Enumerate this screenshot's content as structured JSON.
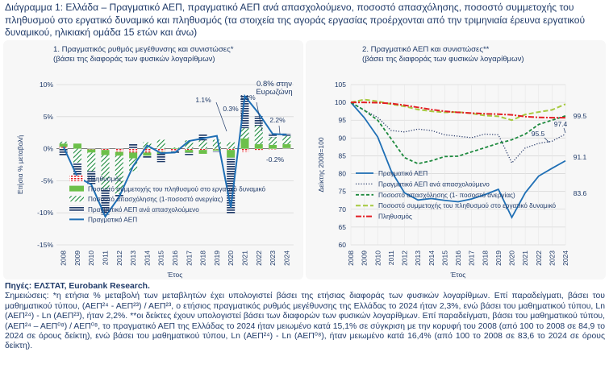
{
  "title": "Διάγραμμα 1: Ελλάδα – Πραγματικό ΑΕΠ, πραγματικό ΑΕΠ ανά απασχολούμενο, ποσοστό απασχόλησης, ποσοστό συμμετοχής του πληθυσμού στο εργατικό δυναμικό και πληθυσμός (τα στοιχεία της αγοράς εργασίας προέρχονται από την τριμηνιαία έρευνα εργατικού δυναμικού, ηλικιακή ομάδα 15 ετών και άνω)",
  "footer": {
    "sources": "Πηγές: ΕΛΣΤΑΤ, Eurobank Research.",
    "notes": "Σημειώσεις: *η ετήσια % μεταβολή των μεταβλητών έχει υπολογιστεί βάσει της ετήσιας διαφοράς των φυσικών λογαρίθμων. Επί παραδείγματι, βάσει του μαθηματικού τύπου, (ΑΕΠ²⁴ - ΑΕΠ²³) / ΑΕΠ²³, ο ετήσιος πραγματικός ρυθμός μεγέθυνσης της Ελλάδας το 2024 ήταν 2,3%, ενώ βάσει του μαθηματικού τύπου, Ln (ΑΕΠ²⁴) - Ln (ΑΕΠ²³), ήταν 2,2%. **οι δείκτες έχουν υπολογιστεί βάσει των διαφορών των φυσικών λογαρίθμων. Επί παραδείγματι, βάσει του μαθηματικού τύπου, (ΑΕΠ²⁴ – ΑΕΠ⁰⁸) / ΑΕΠ⁰⁸, το πραγματικό ΑΕΠ της Ελλάδας το 2024 ήταν μειωμένο κατά 15,1% σε σύγκριση με την κορυφή του 2008 (από 100 το 2008 σε 84,9 το 2024 σε όρους δείκτη), ενώ βάσει του μαθηματικού τύπου, Ln (ΑΕΠ²⁴) - Ln (ΑΕΠ⁰⁸), ήταν μειωμένο κατά 16,4% (από 100 το 2008 σε 83,6 το 2024 σε όρους δείκτη)."
  },
  "colors": {
    "navy": "#1f3a68",
    "gdp": "#1f6fb5",
    "participation": "#6cc04a",
    "employment": "#1e8a3e",
    "population": "#e31e24",
    "participation_light": "#a6c93f",
    "productivity_dots": "#2d3f6e",
    "panel_bg": "#f7f7f7"
  },
  "chart_data": [
    {
      "type": "bar",
      "stacked": true,
      "title": "1. Πραγματικός ρυθμός μεγέθυνσης και συνιστώσες*",
      "subtitle": "(βάσει της διαφοράς των φυσικών λογαρίθμων)",
      "ylabel": "Ετήσια % μεταβολή",
      "xlabel": "Έτος",
      "ylim": [
        -15,
        10
      ],
      "yticks": [
        -15,
        -10,
        -5,
        0,
        5,
        10
      ],
      "ytick_labels": [
        "-15%",
        "-10%",
        "-5%",
        "0%",
        "5%",
        "10%"
      ],
      "categories": [
        "2008",
        "2009",
        "2010",
        "2011",
        "2012",
        "2013",
        "2014",
        "2015",
        "2016",
        "2017",
        "2018",
        "2019",
        "2020",
        "2021",
        "2022",
        "2023",
        "2024"
      ],
      "grid": true,
      "legend_position": "lower-left",
      "series": [
        {
          "name": "Πληθυσμός",
          "pattern": "dashed-red",
          "values": [
            0.3,
            0.0,
            -0.1,
            -0.2,
            -0.5,
            -0.6,
            -0.6,
            -0.5,
            -0.3,
            -0.2,
            -0.2,
            -0.1,
            -0.2,
            -0.5,
            -0.2,
            -0.1,
            0.1
          ]
        },
        {
          "name": "Ποσοστό συμμετοχής του πληθυσμού στο εργατικό δυναμικό",
          "pattern": "solid-green",
          "values": [
            0.5,
            0.8,
            -0.5,
            -0.8,
            -0.6,
            -0.9,
            -0.5,
            -0.3,
            0.1,
            -0.4,
            -0.6,
            -0.2,
            -1.2,
            1.6,
            0.7,
            0.6,
            0.6
          ]
        },
        {
          "name": "Ποσοστό απασχόλησης (1-ποσοστό ανεργίας)",
          "pattern": "hatched-green",
          "values": [
            0.3,
            -2.2,
            -2.9,
            -5.4,
            -6.0,
            -2.0,
            1.0,
            1.4,
            0.1,
            1.3,
            1.3,
            1.4,
            1.0,
            1.6,
            2.9,
            1.2,
            1.3
          ]
        },
        {
          "name": "Πραγματικό ΑΕΠ ανά απασχολούμενο",
          "pattern": "striped-navy",
          "values": [
            -1.1,
            -2.2,
            -2.0,
            -3.9,
            -0.4,
            0.8,
            -0.4,
            -1.3,
            -0.5,
            -0.4,
            1.0,
            -0.2,
            -8.7,
            5.1,
            1.5,
            0.6,
            0.4
          ]
        }
      ],
      "line_series": {
        "name": "Πραγματικό ΑΕΠ",
        "values": [
          0.3,
          -4.4,
          -5.6,
          -10.6,
          -7.5,
          -2.7,
          0.5,
          -0.7,
          -0.6,
          1.2,
          1.6,
          2.0,
          -9.2,
          8.2,
          5.5,
          2.3,
          2.2
        ]
      },
      "annotations": [
        {
          "text": "1.1%",
          "year": "2020"
        },
        {
          "text": "0.3%",
          "year": "2021"
        },
        {
          "text": "1.1%",
          "year": "2022"
        },
        {
          "text": "0.8% στην",
          "year": "2024"
        },
        {
          "text": "Ευρωζώνη",
          "year": "2024"
        },
        {
          "text": "2.2%",
          "year": "2024"
        },
        {
          "text": "-0.2%",
          "year": "2024"
        }
      ]
    },
    {
      "type": "line",
      "title": "2. Πραγματικό ΑΕΠ και συνιστώσες**",
      "subtitle": "(βάσει της διαφοράς των φυσικών λογαρίθμων)",
      "ylabel": "Δείκτης 2008=100",
      "xlabel": "Έτος",
      "ylim": [
        60,
        105
      ],
      "yticks": [
        60,
        65,
        70,
        75,
        80,
        85,
        90,
        95,
        100,
        105
      ],
      "categories": [
        "2008",
        "2009",
        "2010",
        "2011",
        "2012",
        "2013",
        "2014",
        "2015",
        "2016",
        "2017",
        "2018",
        "2019",
        "2020",
        "2021",
        "2022",
        "2023",
        "2024"
      ],
      "grid": true,
      "legend_position": "lower-left",
      "series": [
        {
          "name": "Πραγματικό ΑΕΠ",
          "style": "solid-blue",
          "values": [
            100,
            95.7,
            90.3,
            80.8,
            74.6,
            72.6,
            73.0,
            72.5,
            72.1,
            72.9,
            74.1,
            75.6,
            67.7,
            74.6,
            79.3,
            81.5,
            83.6
          ]
        },
        {
          "name": "Πραγματικό ΑΕΠ ανά απασχολούμενο",
          "style": "dotted-navy",
          "values": [
            100,
            97.8,
            95.8,
            92.1,
            91.7,
            92.5,
            92.1,
            90.9,
            90.5,
            90.1,
            91.1,
            90.9,
            83.0,
            87.2,
            88.5,
            89.1,
            91.1
          ]
        },
        {
          "name": "Ποσοστό απασχόλησης (1- ποσοστό ανεργίας)",
          "style": "dashed-green",
          "values": [
            100,
            97.8,
            95.0,
            89.8,
            84.5,
            82.8,
            83.6,
            84.8,
            84.9,
            86.1,
            87.3,
            88.5,
            89.5,
            91.1,
            93.8,
            95.0,
            96.2
          ]
        },
        {
          "name": "Ποσοστό συμμετοχής του πληθυσμού στο εργατικό δυναμικό",
          "style": "dashed-lightgreen",
          "values": [
            100,
            100.8,
            100.3,
            99.5,
            98.9,
            98.0,
            97.5,
            97.2,
            97.3,
            96.9,
            96.3,
            96.1,
            95.0,
            96.6,
            97.3,
            97.9,
            99.5
          ]
        },
        {
          "name": "Πληθυσμός",
          "style": "dashdot-red",
          "values": [
            100,
            100.0,
            99.9,
            99.7,
            99.2,
            98.6,
            98.0,
            97.5,
            97.2,
            97.0,
            96.8,
            96.7,
            96.5,
            96.0,
            95.8,
            95.7,
            95.7
          ]
        }
      ],
      "annotations": [
        {
          "text": "95.5",
          "year": "2021"
        },
        {
          "text": "97.4",
          "year": "2023"
        },
        {
          "text": "99.5",
          "year": "2024"
        },
        {
          "text": "91.1",
          "year": "2024"
        },
        {
          "text": "83.6",
          "year": "2024"
        }
      ]
    }
  ]
}
